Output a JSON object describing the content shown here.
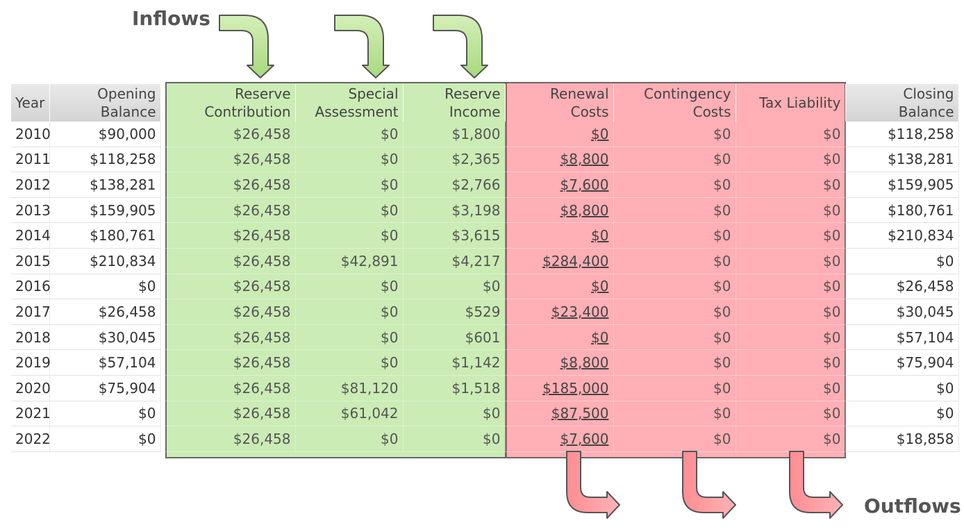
{
  "labels": {
    "inflows": "Inflows",
    "outflows": "Outflows"
  },
  "colors": {
    "inflow": "#a0dc78",
    "outflow": "#ff6e78",
    "border": "#666666"
  },
  "table": {
    "headers": {
      "year": "Year",
      "opening_line1": "Opening",
      "opening_line2": "Balance",
      "reserve_line1": "Reserve",
      "reserve_line2": "Contribution",
      "special_line1": "Special",
      "special_line2": "Assessment",
      "income_line1": "Reserve",
      "income_line2": "Income",
      "renewal": "Renewal Costs",
      "contingency_line1": "Contingency",
      "contingency_line2": "Costs",
      "tax": "Tax Liability",
      "closing": "Closing Balance"
    },
    "rows": [
      {
        "year": "2010",
        "opening": "$90,000",
        "reserve": "$26,458",
        "special": "$0",
        "income": "$1,800",
        "renewal": "$0",
        "contingency": "$0",
        "tax": "$0",
        "closing": "$118,258"
      },
      {
        "year": "2011",
        "opening": "$118,258",
        "reserve": "$26,458",
        "special": "$0",
        "income": "$2,365",
        "renewal": "$8,800",
        "contingency": "$0",
        "tax": "$0",
        "closing": "$138,281"
      },
      {
        "year": "2012",
        "opening": "$138,281",
        "reserve": "$26,458",
        "special": "$0",
        "income": "$2,766",
        "renewal": "$7,600",
        "contingency": "$0",
        "tax": "$0",
        "closing": "$159,905"
      },
      {
        "year": "2013",
        "opening": "$159,905",
        "reserve": "$26,458",
        "special": "$0",
        "income": "$3,198",
        "renewal": "$8,800",
        "contingency": "$0",
        "tax": "$0",
        "closing": "$180,761"
      },
      {
        "year": "2014",
        "opening": "$180,761",
        "reserve": "$26,458",
        "special": "$0",
        "income": "$3,615",
        "renewal": "$0",
        "contingency": "$0",
        "tax": "$0",
        "closing": "$210,834"
      },
      {
        "year": "2015",
        "opening": "$210,834",
        "reserve": "$26,458",
        "special": "$42,891",
        "income": "$4,217",
        "renewal": "$284,400",
        "contingency": "$0",
        "tax": "$0",
        "closing": "$0"
      },
      {
        "year": "2016",
        "opening": "$0",
        "reserve": "$26,458",
        "special": "$0",
        "income": "$0",
        "renewal": "$0",
        "contingency": "$0",
        "tax": "$0",
        "closing": "$26,458"
      },
      {
        "year": "2017",
        "opening": "$26,458",
        "reserve": "$26,458",
        "special": "$0",
        "income": "$529",
        "renewal": "$23,400",
        "contingency": "$0",
        "tax": "$0",
        "closing": "$30,045"
      },
      {
        "year": "2018",
        "opening": "$30,045",
        "reserve": "$26,458",
        "special": "$0",
        "income": "$601",
        "renewal": "$0",
        "contingency": "$0",
        "tax": "$0",
        "closing": "$57,104"
      },
      {
        "year": "2019",
        "opening": "$57,104",
        "reserve": "$26,458",
        "special": "$0",
        "income": "$1,142",
        "renewal": "$8,800",
        "contingency": "$0",
        "tax": "$0",
        "closing": "$75,904"
      },
      {
        "year": "2020",
        "opening": "$75,904",
        "reserve": "$26,458",
        "special": "$81,120",
        "income": "$1,518",
        "renewal": "$185,000",
        "contingency": "$0",
        "tax": "$0",
        "closing": "$0"
      },
      {
        "year": "2021",
        "opening": "$0",
        "reserve": "$26,458",
        "special": "$61,042",
        "income": "$0",
        "renewal": "$87,500",
        "contingency": "$0",
        "tax": "$0",
        "closing": "$0"
      },
      {
        "year": "2022",
        "opening": "$0",
        "reserve": "$26,458",
        "special": "$0",
        "income": "$0",
        "renewal": "$7,600",
        "contingency": "$0",
        "tax": "$0",
        "closing": "$18,858"
      }
    ]
  }
}
